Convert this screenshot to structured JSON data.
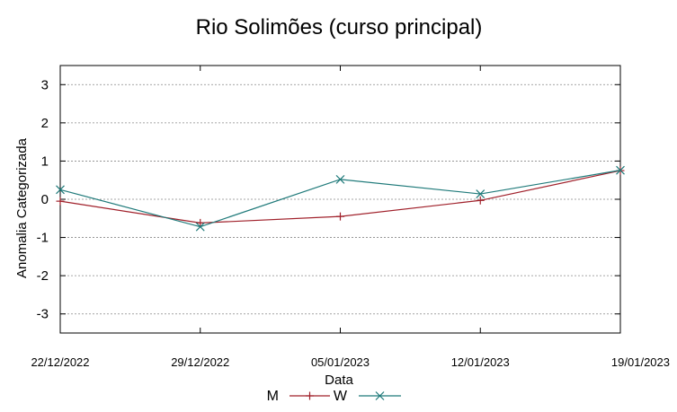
{
  "chart_data": {
    "type": "line",
    "title": "Rio Solimões (curso principal)",
    "xlabel": "Data",
    "ylabel": "Anomalia Categorizada",
    "categories": [
      "22/12/2022",
      "29/12/2022",
      "05/01/2023",
      "12/01/2023",
      "19/01/2023"
    ],
    "yticks": [
      "3",
      "2",
      "1",
      "0",
      "-1",
      "-2",
      "-3"
    ],
    "ylim": [
      -3.5,
      3.5
    ],
    "grid": true,
    "legend_position": "bottom-center",
    "series": [
      {
        "name": "M",
        "values": [
          -0.05,
          -0.62,
          -0.45,
          -0.03,
          0.75
        ],
        "color": "#a0202a",
        "marker": "plus"
      },
      {
        "name": "W",
        "values": [
          0.25,
          -0.72,
          0.52,
          0.14,
          0.76
        ],
        "color": "#1f7a7a",
        "marker": "cross"
      }
    ]
  }
}
